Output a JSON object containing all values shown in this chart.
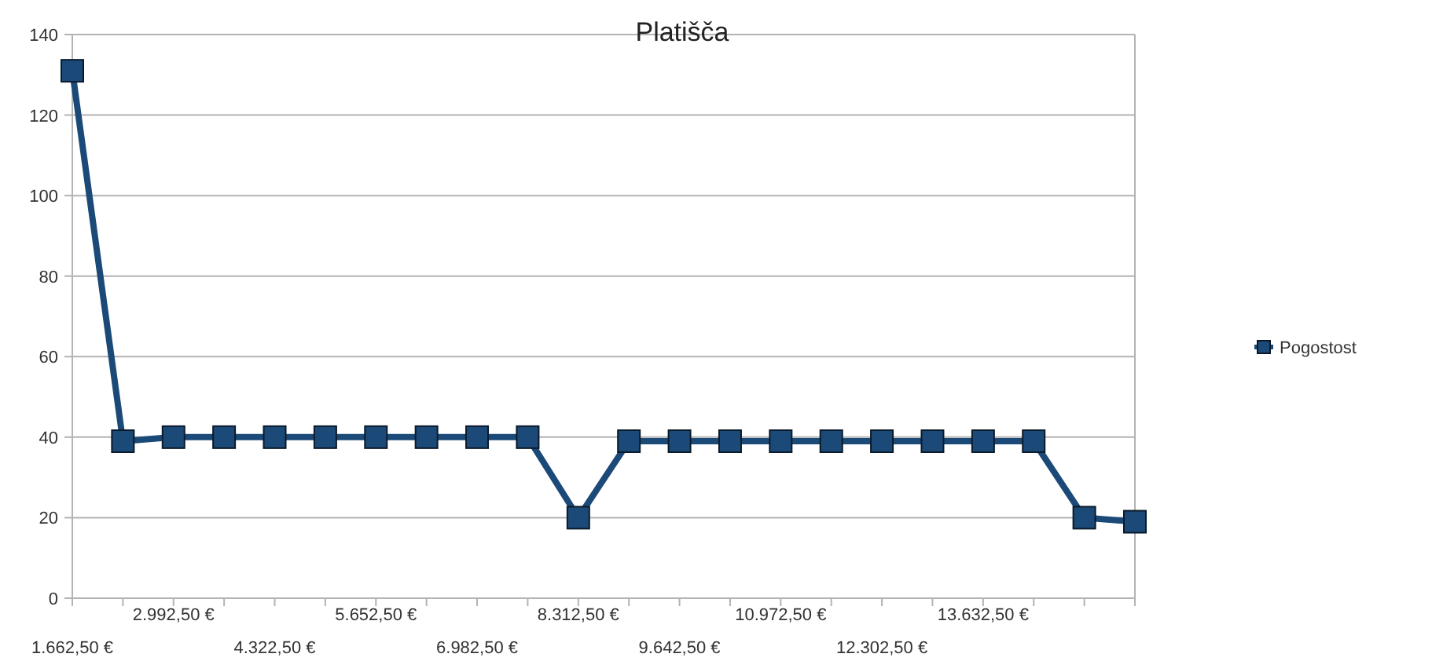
{
  "chart_data": {
    "type": "line",
    "title": "Platišča",
    "categories": [
      "1.662,50 €",
      null,
      "2.992,50 €",
      null,
      "4.322,50 €",
      null,
      "5.652,50 €",
      null,
      "6.982,50 €",
      null,
      "8.312,50 €",
      null,
      "9.642,50 €",
      null,
      "10.972,50 €",
      null,
      "12.302,50 €",
      null,
      "13.632,50 €",
      null,
      null,
      null
    ],
    "series": [
      {
        "name": "Pogostost",
        "color": "#1c4a78",
        "values": [
          131,
          39,
          40,
          40,
          40,
          40,
          40,
          40,
          40,
          40,
          20,
          39,
          39,
          39,
          39,
          39,
          39,
          39,
          39,
          39,
          20,
          19
        ]
      }
    ],
    "ylim": [
      0,
      140
    ],
    "yticks": [
      0,
      20,
      40,
      60,
      80,
      100,
      120,
      140
    ],
    "grid": "y",
    "legend": "right",
    "marker": "square"
  }
}
